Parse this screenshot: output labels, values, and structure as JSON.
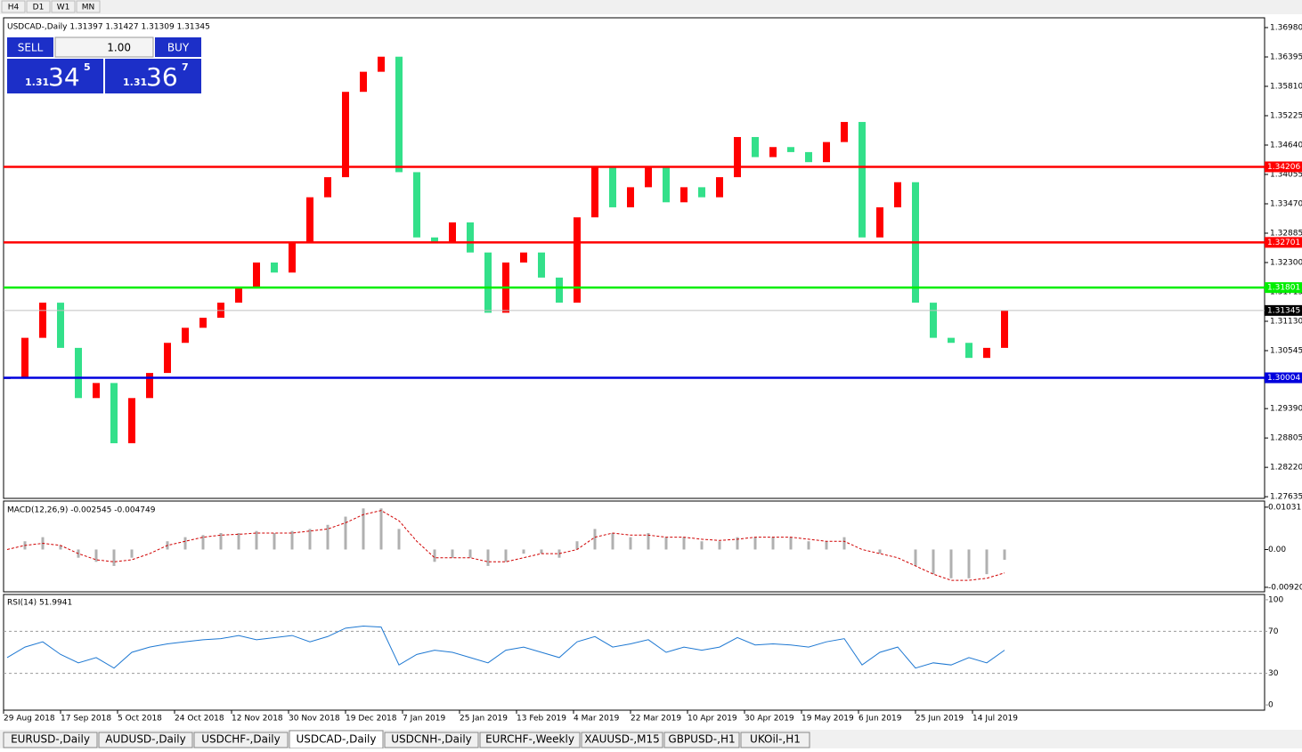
{
  "timeframes": [
    "H4",
    "D1",
    "W1",
    "MN"
  ],
  "symbol_header": "USDCAD-,Daily  1.31397 1.31427 1.31309 1.31345",
  "trade_panel": {
    "sell": "SELL",
    "lots": "1.00",
    "buy": "BUY",
    "sell_big": "1.31",
    "sell_pips": "34",
    "sell_frac": "5",
    "buy_big": "1.31",
    "buy_pips": "36",
    "buy_frac": "7"
  },
  "chart_data": {
    "type": "candlestick",
    "up_color": "#ff0000",
    "down_color": "#33e08a",
    "closes": [
      1.3,
      1.308,
      1.315,
      1.306,
      1.296,
      1.299,
      1.287,
      1.296,
      1.301,
      1.307,
      1.31,
      1.312,
      1.315,
      1.318,
      1.323,
      1.321,
      1.327,
      1.336,
      1.34,
      1.357,
      1.361,
      1.364,
      1.341,
      1.328,
      1.327,
      1.331,
      1.325,
      1.313,
      1.323,
      1.325,
      1.32,
      1.315,
      1.332,
      1.342,
      1.334,
      1.338,
      1.342,
      1.335,
      1.338,
      1.336,
      1.34,
      1.348,
      1.344,
      1.346,
      1.345,
      1.343,
      1.347,
      1.351,
      1.328,
      1.334,
      1.339,
      1.315,
      1.308,
      1.307,
      1.304,
      1.306,
      1.3135
    ],
    "ylim": [
      1.27602,
      1.37175
    ],
    "yticks": [
      {
        "value": 1.3698,
        "label": "1.36980"
      },
      {
        "value": 1.36395,
        "label": "1.36395"
      },
      {
        "value": 1.3581,
        "label": "1.35810"
      },
      {
        "value": 1.35225,
        "label": "1.35225"
      },
      {
        "value": 1.3464,
        "label": "1.34640"
      },
      {
        "value": 1.34055,
        "label": "1.34055"
      },
      {
        "value": 1.3347,
        "label": "1.33470"
      },
      {
        "value": 1.32885,
        "label": "1.32885"
      },
      {
        "value": 1.323,
        "label": "1.32300"
      },
      {
        "value": 1.31715,
        "label": "1.31715"
      },
      {
        "value": 1.3113,
        "label": "1.31130"
      },
      {
        "value": 1.30545,
        "label": "1.30545"
      },
      {
        "value": 1.2939,
        "label": "1.29390"
      },
      {
        "value": 1.28805,
        "label": "1.28805"
      },
      {
        "value": 1.2822,
        "label": "1.28220"
      },
      {
        "value": 1.27635,
        "label": "1.27635"
      }
    ],
    "levels": [
      {
        "value": 1.34206,
        "color": "#ff0000"
      },
      {
        "value": 1.32701,
        "color": "#ff0000"
      },
      {
        "value": 1.31801,
        "color": "#00ee00"
      },
      {
        "value": 1.30004,
        "color": "#0000dd"
      }
    ],
    "current_price": 1.31345
  },
  "macd": {
    "label": "MACD(12,26,9) -0.002545 -0.004749",
    "values": [
      0.0,
      0.002,
      0.003,
      0.001,
      -0.002,
      -0.003,
      -0.004,
      -0.002,
      0.0,
      0.002,
      0.003,
      0.0035,
      0.004,
      0.004,
      0.0045,
      0.004,
      0.0045,
      0.005,
      0.006,
      0.008,
      0.01,
      0.01,
      0.005,
      0.0,
      -0.003,
      -0.002,
      -0.002,
      -0.004,
      -0.003,
      -0.001,
      -0.001,
      -0.002,
      0.002,
      0.005,
      0.004,
      0.003,
      0.004,
      0.003,
      0.003,
      0.002,
      0.002,
      0.003,
      0.003,
      0.003,
      0.003,
      0.002,
      0.002,
      0.003,
      0.0,
      -0.001,
      0.0,
      -0.004,
      -0.006,
      -0.007,
      -0.007,
      -0.006,
      -0.0025
    ],
    "signal": [
      0.0,
      0.001,
      0.0015,
      0.001,
      -0.001,
      -0.0025,
      -0.003,
      -0.0025,
      -0.001,
      0.001,
      0.002,
      0.003,
      0.0035,
      0.0037,
      0.004,
      0.004,
      0.004,
      0.0045,
      0.005,
      0.0065,
      0.0085,
      0.0095,
      0.007,
      0.002,
      -0.002,
      -0.002,
      -0.002,
      -0.003,
      -0.003,
      -0.002,
      -0.001,
      -0.001,
      0.0,
      0.003,
      0.004,
      0.0035,
      0.0035,
      0.003,
      0.003,
      0.0025,
      0.0022,
      0.0025,
      0.003,
      0.003,
      0.003,
      0.0025,
      0.002,
      0.002,
      0.0,
      -0.001,
      -0.002,
      -0.004,
      -0.006,
      -0.0075,
      -0.0075,
      -0.007,
      -0.0057
    ],
    "ylim": [
      -0.0103,
      0.0118
    ],
    "yticks": [
      0.010311,
      {
        "value": 0,
        "label": "0.00"
      },
      -0.009203
    ]
  },
  "rsi": {
    "label": "RSI(14) 51.9941",
    "values": [
      45,
      55,
      60,
      48,
      40,
      45,
      35,
      50,
      55,
      58,
      60,
      62,
      63,
      66,
      62,
      64,
      66,
      60,
      65,
      73,
      75,
      74,
      38,
      48,
      52,
      50,
      45,
      40,
      52,
      55,
      50,
      45,
      60,
      65,
      55,
      58,
      62,
      50,
      55,
      52,
      55,
      64,
      57,
      58,
      57,
      55,
      60,
      63,
      38,
      50,
      55,
      35,
      40,
      38,
      45,
      40,
      52
    ],
    "ylim": [
      -5,
      105
    ],
    "yticks": [
      100,
      70,
      30,
      0
    ]
  },
  "date_labels": [
    "29 Aug 2018",
    "17 Sep 2018",
    "5 Oct 2018",
    "24 Oct 2018",
    "12 Nov 2018",
    "30 Nov 2018",
    "19 Dec 2018",
    "7 Jan 2019",
    "25 Jan 2019",
    "13 Feb 2019",
    "4 Mar 2019",
    "22 Mar 2019",
    "10 Apr 2019",
    "30 Apr 2019",
    "19 May 2019",
    "6 Jun 2019",
    "25 Jun 2019",
    "14 Jul 2019"
  ],
  "tabs": [
    "EURUSD-,Daily",
    "AUDUSD-,Daily",
    "USDCHF-,Daily",
    "USDCAD-,Daily",
    "USDCNH-,Daily",
    "EURCHF-,Weekly",
    "XAUUSD-,M15",
    "GBPUSD-,H1",
    "UKOil-,H1"
  ],
  "active_tab": "USDCAD-,Daily"
}
